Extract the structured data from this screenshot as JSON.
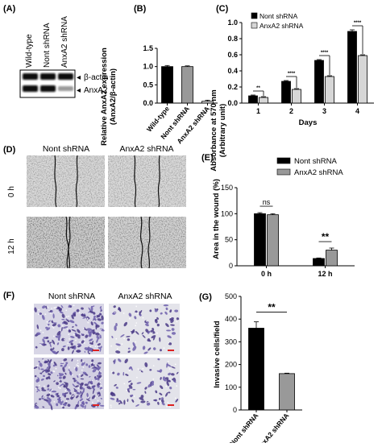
{
  "colors": {
    "black": "#000000",
    "gray": "#999999",
    "light_gray": "#d6d6d6"
  },
  "panels": {
    "A": {
      "label": "(A)",
      "lanes": [
        "Wild-type",
        "Nont shRNA",
        "AnxA2 shRNA"
      ],
      "bands": [
        "β-actin",
        "AnxA2"
      ],
      "arrow": "◂"
    },
    "D": {
      "label": "(D)",
      "col_headers": [
        "Nont shRNA",
        "AnxA2 shRNA"
      ],
      "row_labels": [
        "0 h",
        "12 h"
      ]
    },
    "F": {
      "label": "(F)",
      "col_headers": [
        "Nont shRNA",
        "AnxA2 shRNA"
      ]
    }
  },
  "chart_data": [
    {
      "id": "B",
      "panel_label": "(B)",
      "type": "bar",
      "categories": [
        "Wild-type",
        "Nont shRNA",
        "AnxA2 shRNA"
      ],
      "values": [
        1.0,
        1.0,
        0.05
      ],
      "errors": [
        0.03,
        0.02,
        0.03
      ],
      "bar_colors": [
        "#000000",
        "#999999",
        "#d6d6d6"
      ],
      "ylabel_lines": [
        "Relative AnxA2 expression",
        "(AnxA2/β-actin)"
      ],
      "ylim": [
        0,
        1.5
      ],
      "yticks": [
        "0.0",
        "0.5",
        "1.0",
        "1.5"
      ]
    },
    {
      "id": "C",
      "panel_label": "(C)",
      "type": "bar",
      "categories": [
        "1",
        "2",
        "3",
        "4"
      ],
      "series": [
        {
          "name": "Nont shRNA",
          "values": [
            0.09,
            0.27,
            0.53,
            0.89
          ],
          "errors": [
            0.01,
            0.01,
            0.01,
            0.02
          ],
          "color": "#000000"
        },
        {
          "name": "AnxA2 shRNA",
          "values": [
            0.07,
            0.17,
            0.33,
            0.59
          ],
          "errors": [
            0.01,
            0.01,
            0.01,
            0.01
          ],
          "color": "#d6d6d6"
        }
      ],
      "significance": [
        "**",
        "****",
        "****",
        "****"
      ],
      "xlabel": "Days",
      "ylabel_lines": [
        "Absorbance at 570 nm",
        "(Arbitrary unit)"
      ],
      "ylim": [
        0,
        1.0
      ],
      "yticks": [
        "0.0",
        "0.2",
        "0.4",
        "0.6",
        "0.8",
        "1.0"
      ],
      "legend": "top-left"
    },
    {
      "id": "E",
      "panel_label": "(E)",
      "type": "bar",
      "categories": [
        "0 h",
        "12 h"
      ],
      "series": [
        {
          "name": "Nont shRNA",
          "values": [
            100,
            14
          ],
          "errors": [
            2,
            1
          ],
          "color": "#000000"
        },
        {
          "name": "AnxA2 shRNA",
          "values": [
            98,
            30
          ],
          "errors": [
            2,
            4
          ],
          "color": "#999999"
        }
      ],
      "significance": [
        "ns",
        "**"
      ],
      "ylabel_lines": [
        "Area in the wound (%)"
      ],
      "ylim": [
        0,
        150
      ],
      "yticks": [
        "0",
        "50",
        "100",
        "150"
      ],
      "legend": "top-right"
    },
    {
      "id": "G",
      "panel_label": "(G)",
      "type": "bar",
      "categories": [
        "Nont shRNA",
        "AnxA2 shRNA"
      ],
      "values": [
        360,
        160
      ],
      "errors": [
        28,
        2
      ],
      "bar_colors": [
        "#000000",
        "#999999"
      ],
      "significance": "**",
      "ylabel_lines": [
        "Invasive cells/field"
      ],
      "ylim": [
        0,
        500
      ],
      "yticks": [
        "0",
        "100",
        "200",
        "300",
        "400",
        "500"
      ]
    }
  ]
}
